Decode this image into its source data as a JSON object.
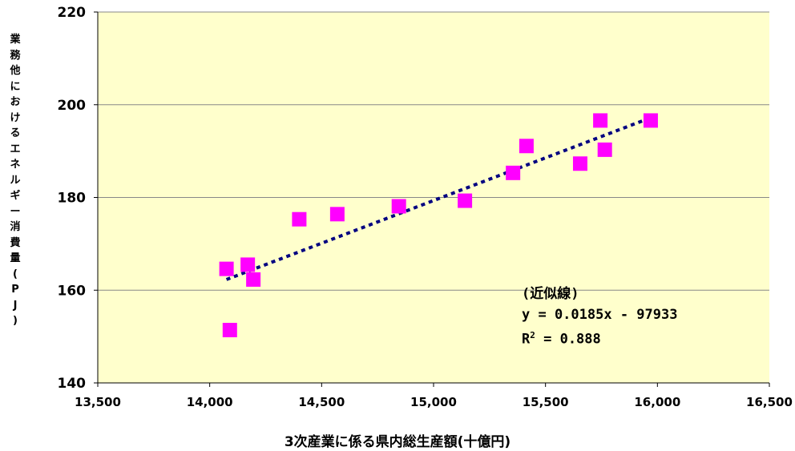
{
  "chart_data": {
    "type": "scatter",
    "xlabel": "3次産業に係る県内総生産額(十億円)",
    "ylabel": "業務他におけるエネルギー消費量(PJ)",
    "xlim": [
      13500,
      16500
    ],
    "ylim": [
      140,
      220
    ],
    "x_ticks": [
      "13,500",
      "14,000",
      "14,500",
      "15,000",
      "15,500",
      "16,000",
      "16,500"
    ],
    "y_ticks": [
      "140",
      "160",
      "180",
      "200",
      "220"
    ],
    "grid": "horizontal",
    "series": [
      {
        "points": [
          {
            "x": 14075,
            "y": 164.6
          },
          {
            "x": 14090,
            "y": 151.4
          },
          {
            "x": 14170,
            "y": 165.5
          },
          {
            "x": 14195,
            "y": 162.3
          },
          {
            "x": 14400,
            "y": 175.3
          },
          {
            "x": 14570,
            "y": 176.4
          },
          {
            "x": 14845,
            "y": 178.1
          },
          {
            "x": 15140,
            "y": 179.3
          },
          {
            "x": 15355,
            "y": 185.3
          },
          {
            "x": 15415,
            "y": 191.1
          },
          {
            "x": 15655,
            "y": 187.3
          },
          {
            "x": 15745,
            "y": 196.6
          },
          {
            "x": 15765,
            "y": 190.3
          },
          {
            "x": 15970,
            "y": 196.6
          }
        ],
        "color": "#ff00ff",
        "marker": "square"
      }
    ],
    "trendline": {
      "x_start": 14075,
      "y_start": 162.3,
      "x_end": 15970,
      "y_end": 197.2,
      "color": "#000080",
      "style": "dotted"
    },
    "annotation": {
      "line1": "(近似線)",
      "line2": "y = 0.0185x - 97933",
      "line3_prefix": "R",
      "line3_sup": "2",
      "line3_suffix": " = 0.888"
    },
    "plot_background": "#ffffcc"
  }
}
